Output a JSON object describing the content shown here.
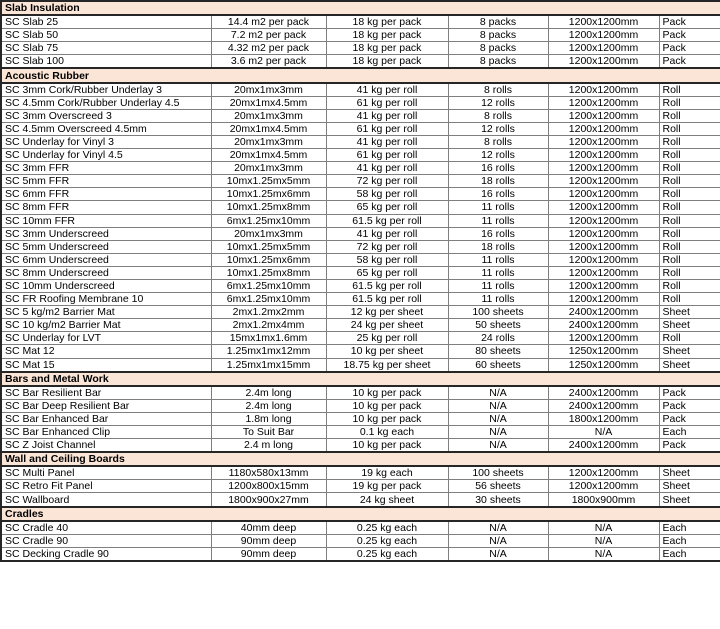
{
  "colors": {
    "section_header_bg": "#fbe5d6",
    "grid_line": "#7f7f7f",
    "outer_border": "#262626",
    "text": "#000000"
  },
  "table": {
    "sections": [
      {
        "title": "Slab Insulation",
        "rows": [
          [
            "SC Slab 25",
            "14.4 m2 per pack",
            "18 kg per pack",
            "8 packs",
            "1200x1200mm",
            "Pack"
          ],
          [
            "SC Slab 50",
            "7.2 m2 per pack",
            "18 kg per pack",
            "8 packs",
            "1200x1200mm",
            "Pack"
          ],
          [
            "SC Slab 75",
            "4.32 m2 per pack",
            "18 kg per pack",
            "8 packs",
            "1200x1200mm",
            "Pack"
          ],
          [
            "SC Slab 100",
            "3.6 m2 per pack",
            "18 kg per pack",
            "8 packs",
            "1200x1200mm",
            "Pack"
          ]
        ]
      },
      {
        "title": "Acoustic Rubber",
        "rows": [
          [
            "SC 3mm Cork/Rubber Underlay 3",
            "20mx1mx3mm",
            "41 kg per roll",
            "8 rolls",
            "1200x1200mm",
            "Roll"
          ],
          [
            "SC 4.5mm Cork/Rubber Underlay 4.5",
            "20mx1mx4.5mm",
            "61 kg per roll",
            "12 rolls",
            "1200x1200mm",
            "Roll"
          ],
          [
            "SC 3mm Overscreed 3",
            "20mx1mx3mm",
            "41 kg per roll",
            "8 rolls",
            "1200x1200mm",
            "Roll"
          ],
          [
            "SC 4.5mm Overscreed 4.5mm",
            "20mx1mx4.5mm",
            "61 kg per roll",
            "12 rolls",
            "1200x1200mm",
            "Roll"
          ],
          [
            "SC Underlay for Vinyl 3",
            "20mx1mx3mm",
            "41 kg per roll",
            "8 rolls",
            "1200x1200mm",
            "Roll"
          ],
          [
            "SC Underlay for Vinyl 4.5",
            "20mx1mx4.5mm",
            "61 kg per roll",
            "12 rolls",
            "1200x1200mm",
            "Roll"
          ],
          [
            "SC 3mm FFR",
            "20mx1mx3mm",
            "41 kg per roll",
            "16 rolls",
            "1200x1200mm",
            "Roll"
          ],
          [
            "SC 5mm FFR",
            "10mx1.25mx5mm",
            "72 kg per roll",
            "18 rolls",
            "1200x1200mm",
            "Roll"
          ],
          [
            "SC 6mm FFR",
            "10mx1.25mx6mm",
            "58 kg per roll",
            "16 rolls",
            "1200x1200mm",
            "Roll"
          ],
          [
            "SC 8mm FFR",
            "10mx1.25mx8mm",
            "65 kg per roll",
            "11 rolls",
            "1200x1200mm",
            "Roll"
          ],
          [
            "SC 10mm FFR",
            "6mx1.25mx10mm",
            "61.5 kg per roll",
            "11 rolls",
            "1200x1200mm",
            "Roll"
          ],
          [
            "SC 3mm Underscreed",
            "20mx1mx3mm",
            "41 kg per roll",
            "16 rolls",
            "1200x1200mm",
            "Roll"
          ],
          [
            "SC 5mm Underscreed",
            "10mx1.25mx5mm",
            "72 kg per roll",
            "18 rolls",
            "1200x1200mm",
            "Roll"
          ],
          [
            "SC 6mm Underscreed",
            "10mx1.25mx6mm",
            "58 kg per roll",
            "11 rolls",
            "1200x1200mm",
            "Roll"
          ],
          [
            "SC 8mm Underscreed",
            "10mx1.25mx8mm",
            "65 kg per roll",
            "11 rolls",
            "1200x1200mm",
            "Roll"
          ],
          [
            "SC 10mm Underscreed",
            "6mx1.25mx10mm",
            "61.5 kg per roll",
            "11 rolls",
            "1200x1200mm",
            "Roll"
          ],
          [
            "SC FR Roofing Membrane 10",
            "6mx1.25mx10mm",
            "61.5 kg per roll",
            "11 rolls",
            "1200x1200mm",
            "Roll"
          ],
          [
            "SC 5 kg/m2 Barrier Mat",
            "2mx1.2mx2mm",
            "12 kg per sheet",
            "100 sheets",
            "2400x1200mm",
            "Sheet"
          ],
          [
            "SC 10 kg/m2 Barrier Mat",
            "2mx1.2mx4mm",
            "24 kg per sheet",
            "50 sheets",
            "2400x1200mm",
            "Sheet"
          ],
          [
            "SC Underlay for LVT",
            "15mx1mx1.6mm",
            "25 kg per roll",
            "24 rolls",
            "1200x1200mm",
            "Roll"
          ],
          [
            "SC Mat 12",
            "1.25mx1mx12mm",
            "10 kg per sheet",
            "80 sheets",
            "1250x1200mm",
            "Sheet"
          ],
          [
            "SC Mat 15",
            "1.25mx1mx15mm",
            "18.75 kg per sheet",
            "60 sheets",
            "1250x1200mm",
            "Sheet"
          ]
        ]
      },
      {
        "title": "Bars and Metal Work",
        "rows": [
          [
            "SC Bar Resilient Bar",
            "2.4m long",
            "10 kg per pack",
            "N/A",
            "2400x1200mm",
            "Pack"
          ],
          [
            "SC Bar Deep Resilient Bar",
            "2.4m long",
            "10 kg per pack",
            "N/A",
            "2400x1200mm",
            "Pack"
          ],
          [
            "SC Bar Enhanced Bar",
            "1.8m long",
            "10 kg per pack",
            "N/A",
            "1800x1200mm",
            "Pack"
          ],
          [
            "SC Bar Enhanced Clip",
            "To Suit Bar",
            "0.1 kg each",
            "N/A",
            "N/A",
            "Each"
          ],
          [
            "SC Z Joist Channel",
            "2.4 m long",
            "10 kg per pack",
            "N/A",
            "2400x1200mm",
            "Pack"
          ]
        ]
      },
      {
        "title": "Wall and Ceiling Boards",
        "rows": [
          [
            "SC Multi Panel",
            "1180x580x13mm",
            "19 kg each",
            "100 sheets",
            "1200x1200mm",
            "Sheet"
          ],
          [
            "SC Retro Fit Panel",
            "1200x800x15mm",
            "19 kg per pack",
            "56 sheets",
            "1200x1200mm",
            "Sheet"
          ],
          [
            "SC Wallboard",
            "1800x900x27mm",
            "24 kg sheet",
            "30 sheets",
            "1800x900mm",
            "Sheet"
          ]
        ]
      },
      {
        "title": "Cradles",
        "rows": [
          [
            "SC Cradle 40",
            "40mm deep",
            "0.25 kg each",
            "N/A",
            "N/A",
            "Each"
          ],
          [
            "SC Cradle 90",
            "90mm deep",
            "0.25 kg each",
            "N/A",
            "N/A",
            "Each"
          ],
          [
            "SC Decking Cradle 90",
            "90mm deep",
            "0.25 kg each",
            "N/A",
            "N/A",
            "Each"
          ]
        ]
      }
    ]
  }
}
